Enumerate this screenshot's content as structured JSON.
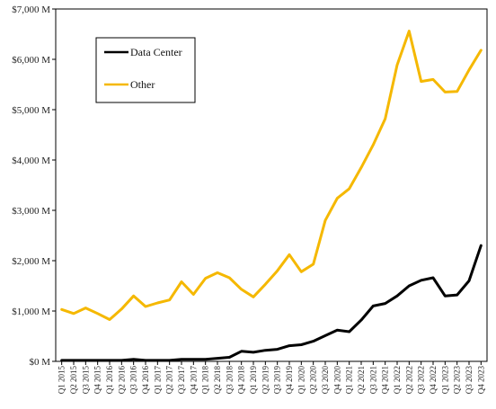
{
  "chart_data": {
    "type": "line",
    "title": "",
    "xlabel": "",
    "ylabel": "",
    "ylim": [
      0,
      7000
    ],
    "y_ticks": [
      0,
      1000,
      2000,
      3000,
      4000,
      5000,
      6000,
      7000
    ],
    "y_tick_labels": [
      "$0 M",
      "$1,000 M",
      "$2,000 M",
      "$3,000 M",
      "$4,000 M",
      "$5,000 M",
      "$6,000 M",
      "$7,000 M"
    ],
    "legend_placement": "upper-left inside plot",
    "grid": false,
    "x": [
      "Q1 2015",
      "Q2 2015",
      "Q3 2015",
      "Q4 2015",
      "Q1 2016",
      "Q2 2016",
      "Q3 2016",
      "Q4 2016",
      "Q1 2017",
      "Q2 2017",
      "Q3 2017",
      "Q4 2017",
      "Q1 2018",
      "Q2 2018",
      "Q3 2018",
      "Q4 2018",
      "Q1 2019",
      "Q2 2019",
      "Q3 2019",
      "Q4 2019",
      "Q1 2020",
      "Q2 2020",
      "Q3 2020",
      "Q4 2020",
      "Q1 2021",
      "Q2 2021",
      "Q3 2021",
      "Q4 2021",
      "Q1 2022",
      "Q2 2022",
      "Q3 2022",
      "Q4 2022",
      "Q1 2023",
      "Q2 2023",
      "Q3 2023",
      "Q4 2023"
    ],
    "series": [
      {
        "name": "Data Center",
        "color": "#000000",
        "values": [
          20,
          20,
          20,
          20,
          20,
          20,
          40,
          20,
          20,
          20,
          40,
          40,
          40,
          60,
          80,
          200,
          180,
          220,
          240,
          310,
          330,
          400,
          510,
          620,
          590,
          820,
          1100,
          1150,
          1300,
          1500,
          1610,
          1660,
          1300,
          1320,
          1600,
          2300
        ]
      },
      {
        "name": "Other",
        "color": "#f5b800",
        "values": [
          1030,
          950,
          1060,
          950,
          830,
          1040,
          1300,
          1090,
          1160,
          1220,
          1580,
          1330,
          1650,
          1760,
          1660,
          1430,
          1280,
          1530,
          1800,
          2120,
          1780,
          1930,
          2800,
          3240,
          3430,
          3850,
          4300,
          4820,
          5890,
          6560,
          5560,
          5600,
          5350,
          5360,
          5790,
          6180
        ]
      }
    ]
  }
}
